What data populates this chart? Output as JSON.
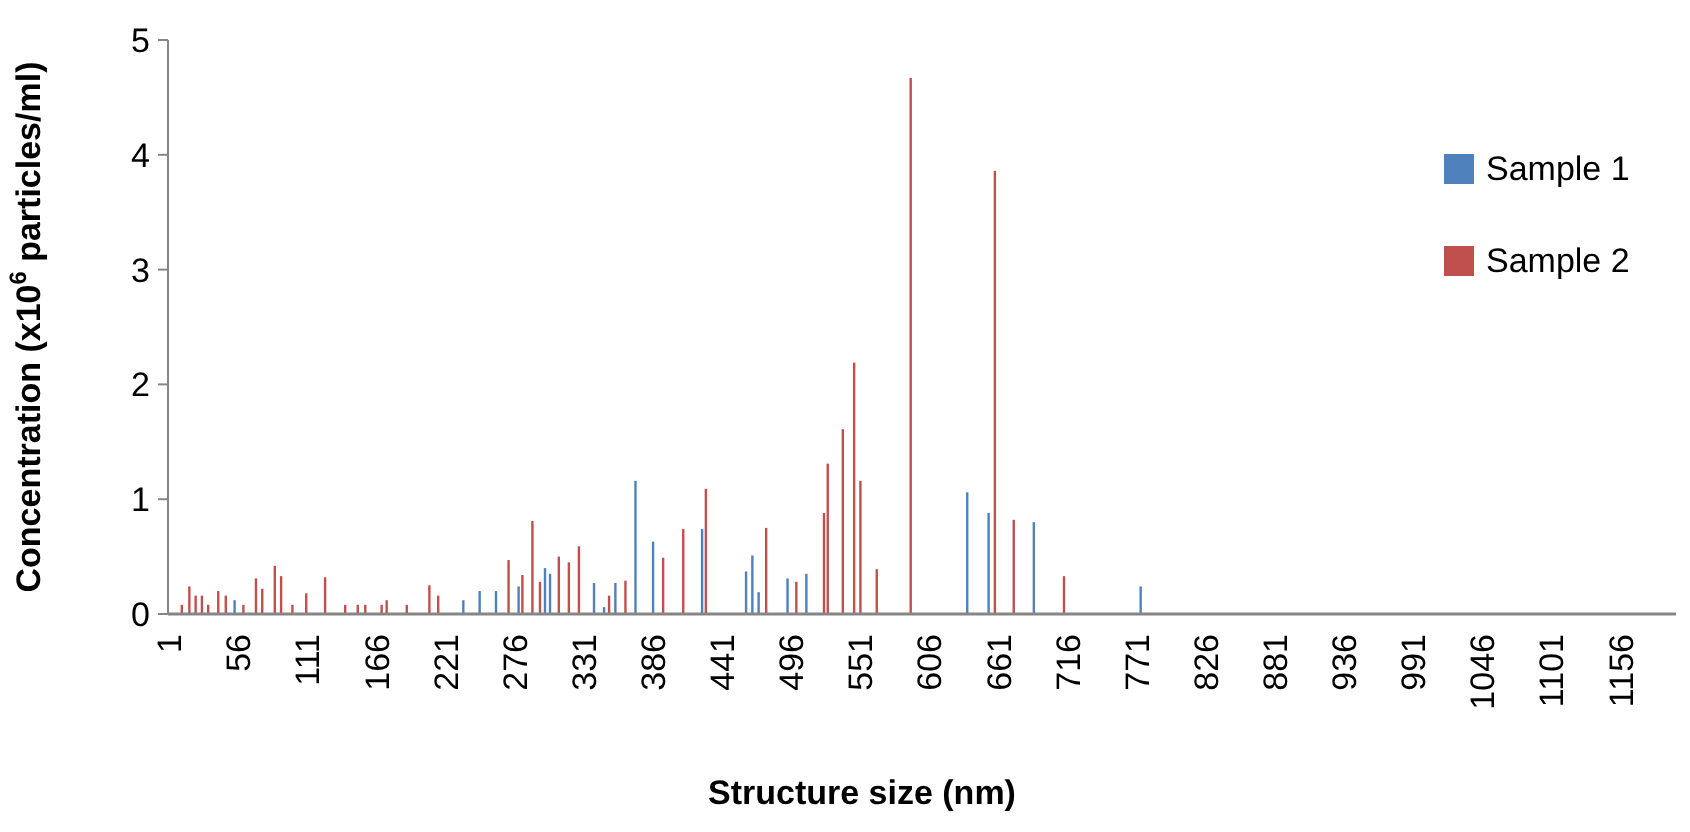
{
  "chart_data": {
    "type": "bar",
    "xlabel": "Structure size (nm)",
    "ylabel": "Concentration (x10$^{6}$ particles/ml)",
    "xlim": [
      0,
      1200
    ],
    "xticks": [
      1,
      56,
      111,
      166,
      221,
      276,
      331,
      386,
      441,
      496,
      551,
      606,
      661,
      716,
      771,
      826,
      881,
      936,
      991,
      1046,
      1101,
      1156
    ],
    "ylim": [
      0,
      5
    ],
    "yticks": [
      0,
      1,
      2,
      3,
      4,
      5
    ],
    "grid": false,
    "legend": "right",
    "series": [
      {
        "name": "Sample 1",
        "color": "#4f81bd",
        "x": [
          53,
          235,
          248,
          261,
          279,
          300,
          304,
          339,
          347,
          356,
          372,
          386,
          425,
          460,
          465,
          470,
          493,
          508,
          636,
          653,
          689,
          774
        ],
        "values": [
          0.12,
          0.12,
          0.2,
          0.2,
          0.24,
          0.4,
          0.35,
          0.27,
          0.06,
          0.27,
          1.16,
          0.63,
          0.74,
          0.37,
          0.51,
          0.19,
          0.31,
          0.35,
          1.06,
          0.88,
          0.8,
          0.24
        ]
      },
      {
        "name": "Sample 2",
        "color": "#c0504d",
        "x": [
          11,
          17,
          22,
          27,
          32,
          40,
          46,
          60,
          70,
          75,
          85,
          90,
          99,
          110,
          125,
          141,
          151,
          157,
          170,
          174,
          190,
          208,
          215,
          271,
          282,
          290,
          296,
          311,
          319,
          327,
          351,
          364,
          394,
          410,
          428,
          476,
          500,
          522,
          525,
          537,
          546,
          551,
          564,
          591,
          658,
          673,
          713
        ],
        "values": [
          0.08,
          0.24,
          0.16,
          0.16,
          0.08,
          0.2,
          0.16,
          0.08,
          0.31,
          0.22,
          0.42,
          0.33,
          0.08,
          0.18,
          0.32,
          0.08,
          0.08,
          0.08,
          0.08,
          0.12,
          0.08,
          0.25,
          0.16,
          0.47,
          0.34,
          0.81,
          0.28,
          0.5,
          0.45,
          0.59,
          0.16,
          0.29,
          0.49,
          0.74,
          1.09,
          0.75,
          0.28,
          0.88,
          1.31,
          1.61,
          2.19,
          1.16,
          0.39,
          4.67,
          3.86,
          0.82,
          0.33
        ]
      }
    ]
  }
}
